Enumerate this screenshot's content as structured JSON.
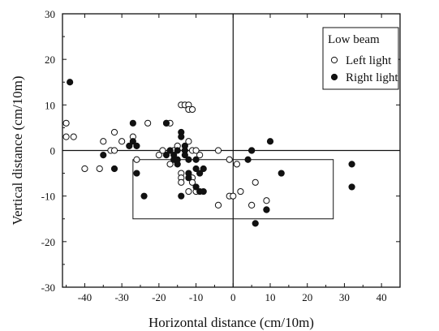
{
  "chart_data": {
    "type": "scatter",
    "title": "",
    "xlabel": "Horizontal distance (cm/10m)",
    "ylabel": "Vertical distance (cm/10m)",
    "xlim": [
      -46,
      45
    ],
    "ylim": [
      -30,
      30
    ],
    "x_ticks": [
      -40,
      -30,
      -20,
      -10,
      0,
      10,
      20,
      30,
      40
    ],
    "y_ticks": [
      -30,
      -20,
      -10,
      0,
      10,
      20,
      30
    ],
    "grid": false,
    "reference_lines": {
      "x": 0,
      "y": 0
    },
    "region_box": {
      "x": [
        -27,
        27
      ],
      "y": [
        -15,
        -2
      ]
    },
    "legend": {
      "title": "Low beam",
      "placement": "top-right"
    },
    "series": [
      {
        "name": "Left light",
        "marker": "open-circle",
        "points": [
          [
            -45,
            6
          ],
          [
            -45,
            3
          ],
          [
            -43,
            3
          ],
          [
            -40,
            -4
          ],
          [
            -36,
            -4
          ],
          [
            -35,
            2
          ],
          [
            -33,
            0
          ],
          [
            -32,
            0
          ],
          [
            -32,
            4
          ],
          [
            -30,
            2
          ],
          [
            -27,
            3
          ],
          [
            -26,
            -2
          ],
          [
            -23,
            6
          ],
          [
            -20,
            -1
          ],
          [
            -19,
            0
          ],
          [
            -18,
            6
          ],
          [
            -17,
            6
          ],
          [
            -17,
            -3
          ],
          [
            -16,
            0
          ],
          [
            -15,
            1
          ],
          [
            -14,
            10
          ],
          [
            -13,
            10
          ],
          [
            -12,
            10
          ],
          [
            -12,
            9
          ],
          [
            -11,
            9
          ],
          [
            -12,
            2
          ],
          [
            -11,
            0
          ],
          [
            -10,
            0
          ],
          [
            -9,
            -1
          ],
          [
            -14,
            -5
          ],
          [
            -14,
            -6
          ],
          [
            -14,
            -7
          ],
          [
            -12,
            -9
          ],
          [
            -11,
            -6
          ],
          [
            -11,
            -7
          ],
          [
            -10,
            -9
          ],
          [
            -4,
            0
          ],
          [
            -4,
            -12
          ],
          [
            -1,
            -2
          ],
          [
            -1,
            -10
          ],
          [
            0,
            -10
          ],
          [
            1,
            -3
          ],
          [
            2,
            -9
          ],
          [
            5,
            0
          ],
          [
            5,
            -12
          ],
          [
            6,
            -7
          ],
          [
            9,
            -11
          ],
          [
            9,
            -13
          ]
        ]
      },
      {
        "name": "Right light",
        "marker": "filled-circle",
        "points": [
          [
            -44,
            15
          ],
          [
            -35,
            -1
          ],
          [
            -32,
            -4
          ],
          [
            -28,
            1
          ],
          [
            -27,
            2
          ],
          [
            -27,
            6
          ],
          [
            -26,
            1
          ],
          [
            -26,
            -5
          ],
          [
            -24,
            -10
          ],
          [
            -18,
            6
          ],
          [
            -18,
            -1
          ],
          [
            -17,
            0
          ],
          [
            -16,
            -1
          ],
          [
            -16,
            -2
          ],
          [
            -15,
            0
          ],
          [
            -15,
            -2
          ],
          [
            -15,
            -3
          ],
          [
            -14,
            4
          ],
          [
            -14,
            3
          ],
          [
            -13,
            1
          ],
          [
            -13,
            0
          ],
          [
            -13,
            -1
          ],
          [
            -12,
            -2
          ],
          [
            -12,
            -6
          ],
          [
            -12,
            -5
          ],
          [
            -14,
            -10
          ],
          [
            -10,
            -2
          ],
          [
            -10,
            -4
          ],
          [
            -10,
            -8
          ],
          [
            -9,
            -5
          ],
          [
            -9,
            -9
          ],
          [
            -8,
            -4
          ],
          [
            -8,
            -9
          ],
          [
            4,
            -2
          ],
          [
            5,
            0
          ],
          [
            6,
            -16
          ],
          [
            9,
            -13
          ],
          [
            10,
            2
          ],
          [
            13,
            -5
          ],
          [
            32,
            -3
          ],
          [
            32,
            -8
          ]
        ]
      }
    ]
  }
}
